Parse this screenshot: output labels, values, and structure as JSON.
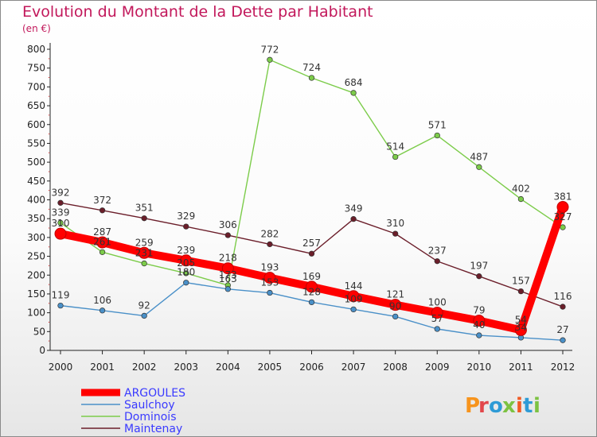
{
  "chart_data": {
    "type": "line",
    "title": "Evolution du Montant de la Dette par Habitant",
    "subtitle": "(en €)",
    "x": [
      "2000",
      "2001",
      "2002",
      "2003",
      "2004",
      "2005",
      "2006",
      "2007",
      "2008",
      "2009",
      "2010",
      "2011",
      "2012"
    ],
    "ylim": [
      0,
      800
    ],
    "yticks": [
      0,
      50,
      100,
      150,
      200,
      250,
      300,
      350,
      400,
      450,
      500,
      550,
      600,
      650,
      700,
      750,
      800
    ],
    "grid": false,
    "legend": "bottom-left",
    "series": [
      {
        "name": "ARGOULES",
        "color": "#ff0000",
        "values": [
          310,
          287,
          259,
          239,
          218,
          193,
          169,
          144,
          121,
          100,
          79,
          54,
          381
        ]
      },
      {
        "name": "Saulchoy",
        "color": "#4a90c8",
        "values": [
          119,
          106,
          92,
          180,
          163,
          153,
          128,
          109,
          90,
          57,
          40,
          34,
          27
        ]
      },
      {
        "name": "Dominois",
        "color": "#7ccc4a",
        "values": [
          339,
          261,
          231,
          205,
          173,
          772,
          724,
          684,
          514,
          571,
          487,
          402,
          327
        ]
      },
      {
        "name": "Maintenay",
        "color": "#6b1e2a",
        "values": [
          392,
          372,
          351,
          329,
          306,
          282,
          257,
          349,
          310,
          237,
          197,
          157,
          116
        ]
      }
    ],
    "data_labels": [
      {
        "series": 0,
        "index": 0,
        "text": "310"
      },
      {
        "series": 0,
        "index": 1,
        "text": "287"
      },
      {
        "series": 0,
        "index": 2,
        "text": "259"
      },
      {
        "series": 0,
        "index": 3,
        "text": "239"
      },
      {
        "series": 0,
        "index": 4,
        "text": "218"
      },
      {
        "series": 0,
        "index": 5,
        "text": "193"
      },
      {
        "series": 0,
        "index": 6,
        "text": "169"
      },
      {
        "series": 0,
        "index": 7,
        "text": "144"
      },
      {
        "series": 0,
        "index": 8,
        "text": "121"
      },
      {
        "series": 0,
        "index": 9,
        "text": "100"
      },
      {
        "series": 0,
        "index": 10,
        "text": "79"
      },
      {
        "series": 0,
        "index": 11,
        "text": "54"
      },
      {
        "series": 0,
        "index": 12,
        "text": "381"
      },
      {
        "series": 1,
        "index": 0,
        "text": "119"
      },
      {
        "series": 1,
        "index": 1,
        "text": "106"
      },
      {
        "series": 1,
        "index": 2,
        "text": "92"
      },
      {
        "series": 1,
        "index": 3,
        "text": "180"
      },
      {
        "series": 1,
        "index": 4,
        "text": "163"
      },
      {
        "series": 1,
        "index": 5,
        "text": "153"
      },
      {
        "series": 1,
        "index": 6,
        "text": "128"
      },
      {
        "series": 1,
        "index": 7,
        "text": "109"
      },
      {
        "series": 1,
        "index": 8,
        "text": "90"
      },
      {
        "series": 1,
        "index": 9,
        "text": "57"
      },
      {
        "series": 1,
        "index": 10,
        "text": "40"
      },
      {
        "series": 1,
        "index": 11,
        "text": "34"
      },
      {
        "series": 1,
        "index": 12,
        "text": "27"
      },
      {
        "series": 2,
        "index": 0,
        "text": "339"
      },
      {
        "series": 2,
        "index": 1,
        "text": "261"
      },
      {
        "series": 2,
        "index": 2,
        "text": "231"
      },
      {
        "series": 2,
        "index": 3,
        "text": "205"
      },
      {
        "series": 2,
        "index": 4,
        "text": "173"
      },
      {
        "series": 2,
        "index": 5,
        "text": "772"
      },
      {
        "series": 2,
        "index": 6,
        "text": "724"
      },
      {
        "series": 2,
        "index": 7,
        "text": "684"
      },
      {
        "series": 2,
        "index": 8,
        "text": "514"
      },
      {
        "series": 2,
        "index": 9,
        "text": "571"
      },
      {
        "series": 2,
        "index": 10,
        "text": "487"
      },
      {
        "series": 2,
        "index": 11,
        "text": "402"
      },
      {
        "series": 2,
        "index": 12,
        "text": "327"
      },
      {
        "series": 3,
        "index": 0,
        "text": "392"
      },
      {
        "series": 3,
        "index": 1,
        "text": "372"
      },
      {
        "series": 3,
        "index": 2,
        "text": "351"
      },
      {
        "series": 3,
        "index": 3,
        "text": "329"
      },
      {
        "series": 3,
        "index": 4,
        "text": "306"
      },
      {
        "series": 3,
        "index": 5,
        "text": "282"
      },
      {
        "series": 3,
        "index": 6,
        "text": "257"
      },
      {
        "series": 3,
        "index": 7,
        "text": "349"
      },
      {
        "series": 3,
        "index": 8,
        "text": "310"
      },
      {
        "series": 3,
        "index": 9,
        "text": "237"
      },
      {
        "series": 3,
        "index": 10,
        "text": "197"
      },
      {
        "series": 3,
        "index": 11,
        "text": "157"
      },
      {
        "series": 3,
        "index": 12,
        "text": "116"
      }
    ]
  },
  "logo": {
    "text": "Proxiti"
  }
}
